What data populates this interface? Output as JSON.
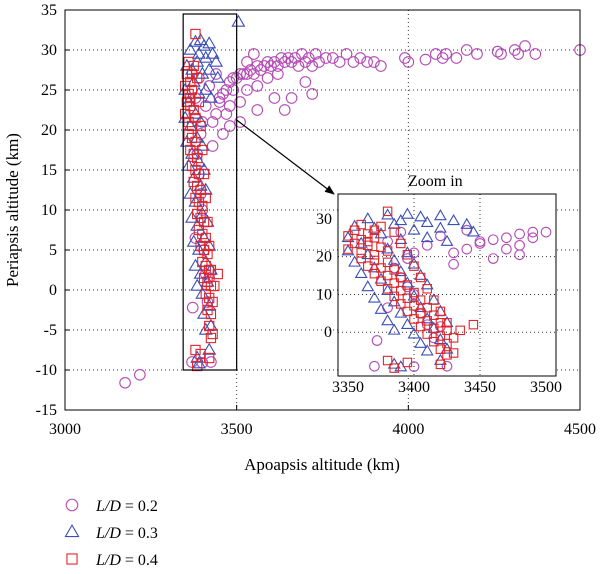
{
  "chart_data": {
    "type": "scatter",
    "title": "",
    "xlabel": "Apoapsis altitude (km)",
    "ylabel": "Periapsis altitude (km)",
    "xlim": [
      3000,
      4500
    ],
    "ylim": [
      -15,
      35
    ],
    "xticks": [
      3000,
      3500,
      4000,
      4500
    ],
    "yticks": [
      -15,
      -10,
      -5,
      0,
      5,
      10,
      15,
      20,
      25,
      30,
      35
    ],
    "grid": "dotted",
    "legend_position": "bottom-left",
    "series": [
      {
        "name": "L/D = 0.2",
        "legend_prefix": "L/D",
        "legend_value": "= 0.2",
        "marker": "circle",
        "color": "#b44bb4",
        "points": [
          [
            3175,
            -11.6
          ],
          [
            3218,
            -10.6
          ],
          [
            3370,
            -9.0
          ],
          [
            3400,
            -9.1
          ],
          [
            3425,
            -9.0
          ],
          [
            3372,
            -2.2
          ],
          [
            3420,
            1.5
          ],
          [
            3380,
            6.5
          ],
          [
            3395,
            12.0
          ],
          [
            3430,
            18.0
          ],
          [
            3440,
            22.0
          ],
          [
            3450,
            23.5
          ],
          [
            3460,
            24.5
          ],
          [
            3470,
            25.0
          ],
          [
            3480,
            26.0
          ],
          [
            3490,
            26.5
          ],
          [
            3500,
            26.5
          ],
          [
            3510,
            27.0
          ],
          [
            3520,
            27.0
          ],
          [
            3530,
            27.0
          ],
          [
            3540,
            27.5
          ],
          [
            3550,
            27.0
          ],
          [
            3560,
            28.0
          ],
          [
            3570,
            27.5
          ],
          [
            3580,
            28.0
          ],
          [
            3590,
            28.5
          ],
          [
            3600,
            28.0
          ],
          [
            3610,
            28.5
          ],
          [
            3620,
            28.0
          ],
          [
            3630,
            29.0
          ],
          [
            3640,
            28.5
          ],
          [
            3650,
            29.0
          ],
          [
            3660,
            28.5
          ],
          [
            3670,
            29.0
          ],
          [
            3680,
            28.0
          ],
          [
            3690,
            29.5
          ],
          [
            3700,
            28.5
          ],
          [
            3710,
            29.0
          ],
          [
            3720,
            28.0
          ],
          [
            3730,
            29.5
          ],
          [
            3740,
            28.5
          ],
          [
            3760,
            29.0
          ],
          [
            3780,
            29.0
          ],
          [
            3800,
            28.5
          ],
          [
            3820,
            29.5
          ],
          [
            3840,
            28.5
          ],
          [
            3860,
            29.0
          ],
          [
            3880,
            28.5
          ],
          [
            3900,
            28.5
          ],
          [
            3920,
            28.0
          ],
          [
            3990,
            29.0
          ],
          [
            4000,
            28.5
          ],
          [
            4050,
            28.8
          ],
          [
            4080,
            29.5
          ],
          [
            4100,
            29.0
          ],
          [
            4110,
            29.5
          ],
          [
            4140,
            29.0
          ],
          [
            4170,
            30.0
          ],
          [
            4200,
            29.5
          ],
          [
            4260,
            29.8
          ],
          [
            4270,
            29.5
          ],
          [
            4310,
            30.0
          ],
          [
            4320,
            29.5
          ],
          [
            4340,
            30.5
          ],
          [
            4370,
            29.5
          ],
          [
            4500,
            30.0
          ],
          [
            3530,
            25.0
          ],
          [
            3560,
            25.5
          ],
          [
            3610,
            24.0
          ],
          [
            3640,
            22.5
          ],
          [
            3660,
            24.0
          ],
          [
            3700,
            26.0
          ],
          [
            3720,
            24.5
          ],
          [
            3560,
            22.5
          ],
          [
            3510,
            21.0
          ],
          [
            3480,
            20.5
          ],
          [
            3450,
            24.0
          ],
          [
            3480,
            23.0
          ],
          [
            3510,
            23.5
          ],
          [
            3460,
            19.5
          ],
          [
            3420,
            25.5
          ],
          [
            3440,
            27.0
          ],
          [
            3490,
            25.0
          ],
          [
            3530,
            28.5
          ],
          [
            3550,
            29.5
          ],
          [
            3590,
            26.5
          ],
          [
            3620,
            27.0
          ],
          [
            3400,
            21.0
          ],
          [
            3410,
            23.0
          ],
          [
            3395,
            19.5
          ],
          [
            3385,
            17.0
          ],
          [
            3390,
            14.5
          ],
          [
            3400,
            10.0
          ],
          [
            3405,
            5.0
          ],
          [
            3410,
            2.0
          ],
          [
            3415,
            -1.5
          ],
          [
            3380,
            24.0
          ],
          [
            3390,
            26.5
          ],
          [
            3430,
            21.0
          ],
          [
            3470,
            22.0
          ]
        ]
      },
      {
        "name": "L/D = 0.3",
        "legend_prefix": "L/D",
        "legend_value": "= 0.3",
        "marker": "triangle",
        "color": "#3a4fb5",
        "points": [
          [
            3505,
            33.5
          ],
          [
            3380,
            31.0
          ],
          [
            3395,
            31.2
          ],
          [
            3405,
            30.5
          ],
          [
            3420,
            30.8
          ],
          [
            3365,
            30.0
          ],
          [
            3390,
            29.5
          ],
          [
            3410,
            29.0
          ],
          [
            3430,
            29.5
          ],
          [
            3440,
            28.5
          ],
          [
            3355,
            28.0
          ],
          [
            3370,
            27.5
          ],
          [
            3385,
            28.5
          ],
          [
            3400,
            27.0
          ],
          [
            3420,
            27.5
          ],
          [
            3445,
            26.5
          ],
          [
            3350,
            25.0
          ],
          [
            3360,
            23.5
          ],
          [
            3375,
            26.0
          ],
          [
            3390,
            24.5
          ],
          [
            3410,
            25.0
          ],
          [
            3425,
            24.0
          ],
          [
            3350,
            21.5
          ],
          [
            3365,
            20.5
          ],
          [
            3380,
            22.0
          ],
          [
            3395,
            21.0
          ],
          [
            3355,
            18.5
          ],
          [
            3370,
            17.0
          ],
          [
            3385,
            19.0
          ],
          [
            3400,
            18.0
          ],
          [
            3360,
            15.5
          ],
          [
            3375,
            14.0
          ],
          [
            3390,
            16.0
          ],
          [
            3405,
            15.0
          ],
          [
            3365,
            12.0
          ],
          [
            3380,
            11.0
          ],
          [
            3395,
            13.0
          ],
          [
            3410,
            12.5
          ],
          [
            3370,
            9.0
          ],
          [
            3385,
            8.0
          ],
          [
            3400,
            9.5
          ],
          [
            3415,
            8.5
          ],
          [
            3375,
            6.0
          ],
          [
            3390,
            5.0
          ],
          [
            3405,
            6.5
          ],
          [
            3420,
            5.5
          ],
          [
            3380,
            3.0
          ],
          [
            3395,
            2.0
          ],
          [
            3410,
            3.5
          ],
          [
            3425,
            2.5
          ],
          [
            3385,
            0.5
          ],
          [
            3400,
            -0.5
          ],
          [
            3415,
            1.0
          ],
          [
            3405,
            -3.0
          ],
          [
            3420,
            -2.0
          ],
          [
            3410,
            -5.0
          ],
          [
            3425,
            -4.5
          ],
          [
            3385,
            -8.5
          ],
          [
            3390,
            -9.2
          ],
          [
            3420,
            -7.5
          ]
        ]
      },
      {
        "name": "L/D = 0.4",
        "legend_prefix": "L/D",
        "legend_value": "= 0.4",
        "marker": "square",
        "color": "#e0262b",
        "points": [
          [
            3380,
            32.0
          ],
          [
            3360,
            28.5
          ],
          [
            3375,
            28.0
          ],
          [
            3355,
            27.0
          ],
          [
            3365,
            26.0
          ],
          [
            3350,
            25.5
          ],
          [
            3360,
            24.5
          ],
          [
            3370,
            25.0
          ],
          [
            3355,
            23.5
          ],
          [
            3365,
            23.0
          ],
          [
            3375,
            22.5
          ],
          [
            3350,
            22.0
          ],
          [
            3360,
            21.0
          ],
          [
            3370,
            20.5
          ],
          [
            3380,
            21.5
          ],
          [
            3360,
            19.5
          ],
          [
            3370,
            19.0
          ],
          [
            3380,
            18.5
          ],
          [
            3365,
            17.5
          ],
          [
            3375,
            17.0
          ],
          [
            3385,
            16.5
          ],
          [
            3370,
            15.5
          ],
          [
            3380,
            15.0
          ],
          [
            3390,
            14.5
          ],
          [
            3375,
            13.5
          ],
          [
            3385,
            13.0
          ],
          [
            3395,
            12.5
          ],
          [
            3380,
            11.5
          ],
          [
            3390,
            11.0
          ],
          [
            3400,
            10.5
          ],
          [
            3385,
            9.5
          ],
          [
            3395,
            9.0
          ],
          [
            3405,
            8.5
          ],
          [
            3390,
            7.5
          ],
          [
            3400,
            7.0
          ],
          [
            3410,
            6.5
          ],
          [
            3395,
            5.5
          ],
          [
            3405,
            5.0
          ],
          [
            3415,
            4.5
          ],
          [
            3400,
            3.5
          ],
          [
            3410,
            3.0
          ],
          [
            3420,
            2.5
          ],
          [
            3405,
            1.5
          ],
          [
            3415,
            1.0
          ],
          [
            3425,
            0.5
          ],
          [
            3410,
            -0.5
          ],
          [
            3420,
            -1.0
          ],
          [
            3430,
            -1.5
          ],
          [
            3415,
            -2.5
          ],
          [
            3425,
            -3.0
          ],
          [
            3420,
            -4.5
          ],
          [
            3430,
            -5.5
          ],
          [
            3425,
            -6.0
          ],
          [
            3380,
            -7.5
          ],
          [
            3395,
            -8.0
          ],
          [
            3420,
            -8.5
          ],
          [
            3385,
            -9.5
          ],
          [
            3435,
            0.5
          ],
          [
            3445,
            2.0
          ],
          [
            3365,
            24.0
          ],
          [
            3370,
            27.0
          ],
          [
            3385,
            26.5
          ],
          [
            3390,
            23.5
          ],
          [
            3395,
            20.5
          ],
          [
            3400,
            17.5
          ],
          [
            3405,
            14.5
          ],
          [
            3410,
            11.5
          ],
          [
            3415,
            8.5
          ],
          [
            3420,
            5.5
          ],
          [
            3425,
            2.5
          ]
        ]
      }
    ],
    "zoom_region": {
      "xlim": [
        3350,
        3500
      ],
      "ylim": [
        -10,
        35
      ]
    },
    "inset": {
      "title": "Zoom in",
      "xlim": [
        3350,
        3500
      ],
      "ylim": [
        -10,
        35
      ],
      "xticks": [
        3350,
        3400,
        3450,
        3500
      ],
      "yticks": [
        0,
        10,
        20,
        30
      ]
    }
  }
}
